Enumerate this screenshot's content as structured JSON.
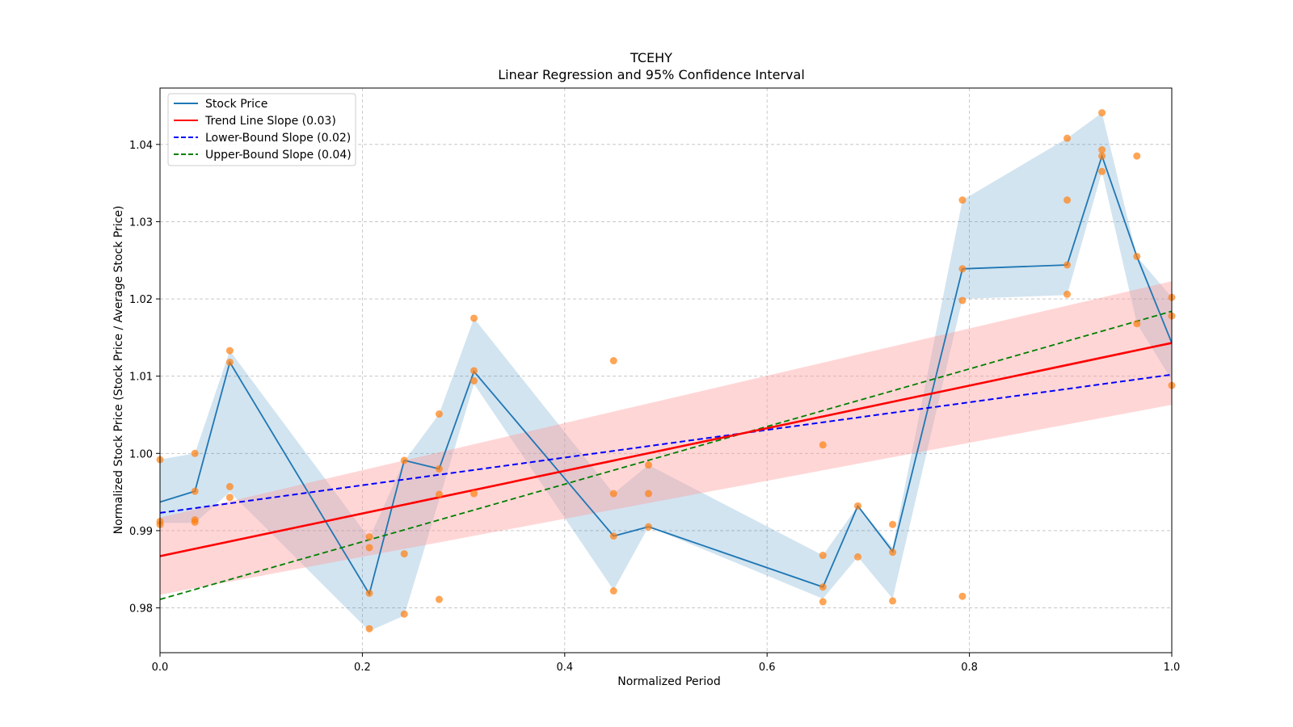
{
  "colors": {
    "price_line": "#1f77b4",
    "price_band": "#1f77b4",
    "scatter": "#ff7f0e",
    "trend": "#ff0000",
    "trend_band": "#ff9999",
    "lower": "#0000ff",
    "upper": "#008000",
    "grid": "#b0b0b0"
  },
  "chart_data": {
    "type": "line",
    "title": "TCEHY",
    "subtitle": "Linear Regression and 95% Confidence Interval",
    "xlabel": "Normalized Period",
    "ylabel": "Normalized Stock Price (Stock Price / Average Stock Price)",
    "xlim": [
      0.0,
      1.0
    ],
    "ylim": [
      0.9742,
      1.0473
    ],
    "xticks": [
      0.0,
      0.2,
      0.4,
      0.6,
      0.8,
      1.0
    ],
    "xtick_labels": [
      "0.0",
      "0.2",
      "0.4",
      "0.6",
      "0.8",
      "1.0"
    ],
    "yticks": [
      0.98,
      0.99,
      1.0,
      1.01,
      1.02,
      1.03,
      1.04
    ],
    "ytick_labels": [
      "0.98",
      "0.99",
      "1.00",
      "1.01",
      "1.02",
      "1.03",
      "1.04"
    ],
    "grid": true,
    "legend_position": "upper-left",
    "legend": [
      {
        "label": "Stock Price",
        "style": "solid",
        "color_key": "price_line"
      },
      {
        "label": "Trend Line Slope (0.03)",
        "style": "solid",
        "color_key": "trend"
      },
      {
        "label": "Lower-Bound Slope (0.02)",
        "style": "dashed",
        "color_key": "lower"
      },
      {
        "label": "Upper-Bound Slope (0.04)",
        "style": "dashed",
        "color_key": "upper"
      }
    ],
    "stock_price": {
      "x": [
        0.0,
        0.0345,
        0.069,
        0.2069,
        0.2414,
        0.2759,
        0.3103,
        0.4483,
        0.4828,
        0.6552,
        0.6897,
        0.7241,
        0.7931,
        0.8966,
        0.931,
        0.9655,
        1.0
      ],
      "y": [
        0.9937,
        0.9951,
        1.0118,
        0.9818,
        0.9991,
        0.998,
        1.0106,
        0.9893,
        0.9905,
        0.9827,
        0.9932,
        0.9873,
        1.0239,
        1.0244,
        1.0385,
        1.0255,
        1.0143
      ]
    },
    "price_band": {
      "x": [
        0.0,
        0.0345,
        0.069,
        0.2069,
        0.2414,
        0.2759,
        0.3103,
        0.4483,
        0.4828,
        0.6552,
        0.6897,
        0.7241,
        0.7931,
        0.8966,
        0.931,
        0.9655,
        1.0
      ],
      "lower": [
        0.991,
        0.991,
        0.995,
        0.977,
        0.979,
        0.994,
        1.009,
        0.9823,
        0.9905,
        0.9812,
        0.9866,
        0.9812,
        1.02,
        1.0205,
        1.0365,
        1.0168,
        1.0095
      ],
      "upper": [
        0.9992,
        1.0,
        1.0133,
        0.989,
        0.999,
        1.0051,
        1.0175,
        0.9948,
        0.9985,
        0.9868,
        0.9932,
        0.9878,
        1.0328,
        1.0408,
        1.0441,
        1.0255,
        1.0202
      ]
    },
    "scatter": {
      "x": [
        0.0,
        0.0,
        0.0,
        0.0345,
        0.0345,
        0.0345,
        0.0345,
        0.069,
        0.069,
        0.069,
        0.069,
        0.2069,
        0.2069,
        0.2069,
        0.2069,
        0.2414,
        0.2414,
        0.2414,
        0.2759,
        0.2759,
        0.2759,
        0.2759,
        0.3103,
        0.3103,
        0.3103,
        0.3103,
        0.4483,
        0.4483,
        0.4483,
        0.4483,
        0.4828,
        0.4828,
        0.4828,
        0.6552,
        0.6552,
        0.6552,
        0.6552,
        0.6897,
        0.6897,
        0.7241,
        0.7241,
        0.7241,
        0.7931,
        0.7931,
        0.7931,
        0.7931,
        0.8966,
        0.8966,
        0.8966,
        0.8966,
        0.931,
        0.931,
        0.931,
        0.931,
        0.9655,
        0.9655,
        0.9655,
        1.0,
        1.0,
        1.0
      ],
      "y": [
        0.9992,
        0.9912,
        0.9908,
        1.0,
        0.9951,
        0.9914,
        0.9911,
        1.0133,
        1.0118,
        0.9957,
        0.9943,
        0.9892,
        0.9878,
        0.9819,
        0.9773,
        0.9991,
        0.987,
        0.9792,
        1.0051,
        0.998,
        0.9947,
        0.9811,
        1.0175,
        1.0107,
        1.0094,
        0.9948,
        1.012,
        0.9948,
        0.9893,
        0.9822,
        0.9985,
        0.9948,
        0.9905,
        1.0011,
        0.9868,
        0.9827,
        0.9808,
        0.9932,
        0.9866,
        0.9908,
        0.9872,
        0.9809,
        1.0328,
        1.0239,
        1.0198,
        0.9815,
        1.0408,
        1.0328,
        1.0244,
        1.0206,
        1.0441,
        1.0393,
        1.0385,
        1.0365,
        1.0385,
        1.0255,
        1.0168,
        1.0202,
        1.0178,
        1.0088
      ]
    },
    "trend_line": {
      "x": [
        0.0,
        1.0
      ],
      "y": [
        0.9867,
        1.0143
      ]
    },
    "trend_band": {
      "x": [
        0.0,
        1.0
      ],
      "lower": [
        0.9817,
        1.0063
      ],
      "upper": [
        0.9917,
        1.0223
      ]
    },
    "lower_bound_line": {
      "x": [
        0.0,
        1.0
      ],
      "y": [
        0.9923,
        1.0102
      ]
    },
    "upper_bound_line": {
      "x": [
        0.0,
        1.0
      ],
      "y": [
        0.9811,
        1.0184
      ]
    }
  }
}
